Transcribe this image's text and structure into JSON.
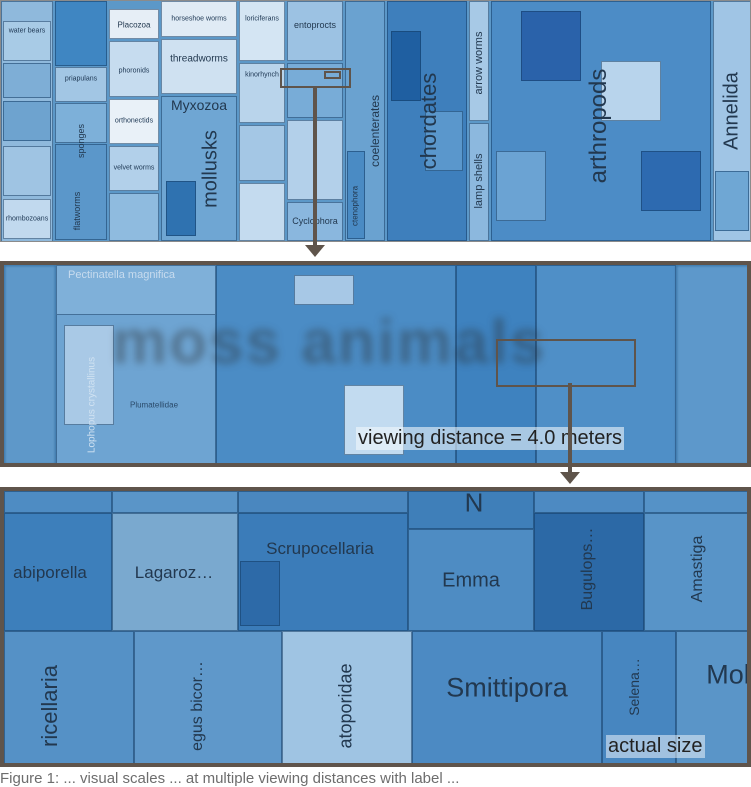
{
  "panel1": {
    "labels": {
      "water_bears": "water bears",
      "placozoa": "Placozoa",
      "horseshoe_worms": "horseshoe worms",
      "loriciferans": "loriciferans",
      "entoprocts": "entoprocts",
      "priapulans": "priapulans",
      "phoronids": "phoronids",
      "threadworms": "threadworms",
      "myxozoa": "Myxozoa",
      "orthonectids": "orthonectids",
      "sponges": "sponges",
      "velvet_worms": "velvet worms",
      "flatworms": "flatworms",
      "mollusks": "mollusks",
      "rhombozoans": "rhombozoans",
      "coelenterates": "coelenterates",
      "chordates": "chordates",
      "arrow_worms": "arrow worms",
      "lamp_shells": "lamp shells",
      "arthropods": "arthropods",
      "annelida": "Annelida",
      "cyclophora": "Cyclophora",
      "ctenophora": "ctenophora",
      "kinorhynch": "kinorhynch"
    }
  },
  "panel2": {
    "labels": {
      "pectinatella": "Pectinatella magnifica",
      "moss_animals": "moss animals",
      "loxosoma": "Lophopus crystallinus",
      "plumatella": "Plumatellidae"
    },
    "viewing_distance": "viewing distance = 4.0 meters"
  },
  "panel3": {
    "labels": {
      "labiporella": "abiporella",
      "lagaroz": "Lagaroz…",
      "scrupocellaria": "Scrupocellaria",
      "emma": "Emma",
      "bugulops": "Bugulops…",
      "amastiga": "Amastiga",
      "ricellaria": "ricellaria",
      "egus_bicor": "egus bicor…",
      "atoporidae": "atoporidae",
      "smittipora": "Smittipora",
      "selena": "Selena…",
      "mol": "Mol",
      "top_n": "N"
    },
    "actual_size": "actual size"
  },
  "caption": "Figure 1: ... visual scales ... at multiple viewing distances with label ..."
}
